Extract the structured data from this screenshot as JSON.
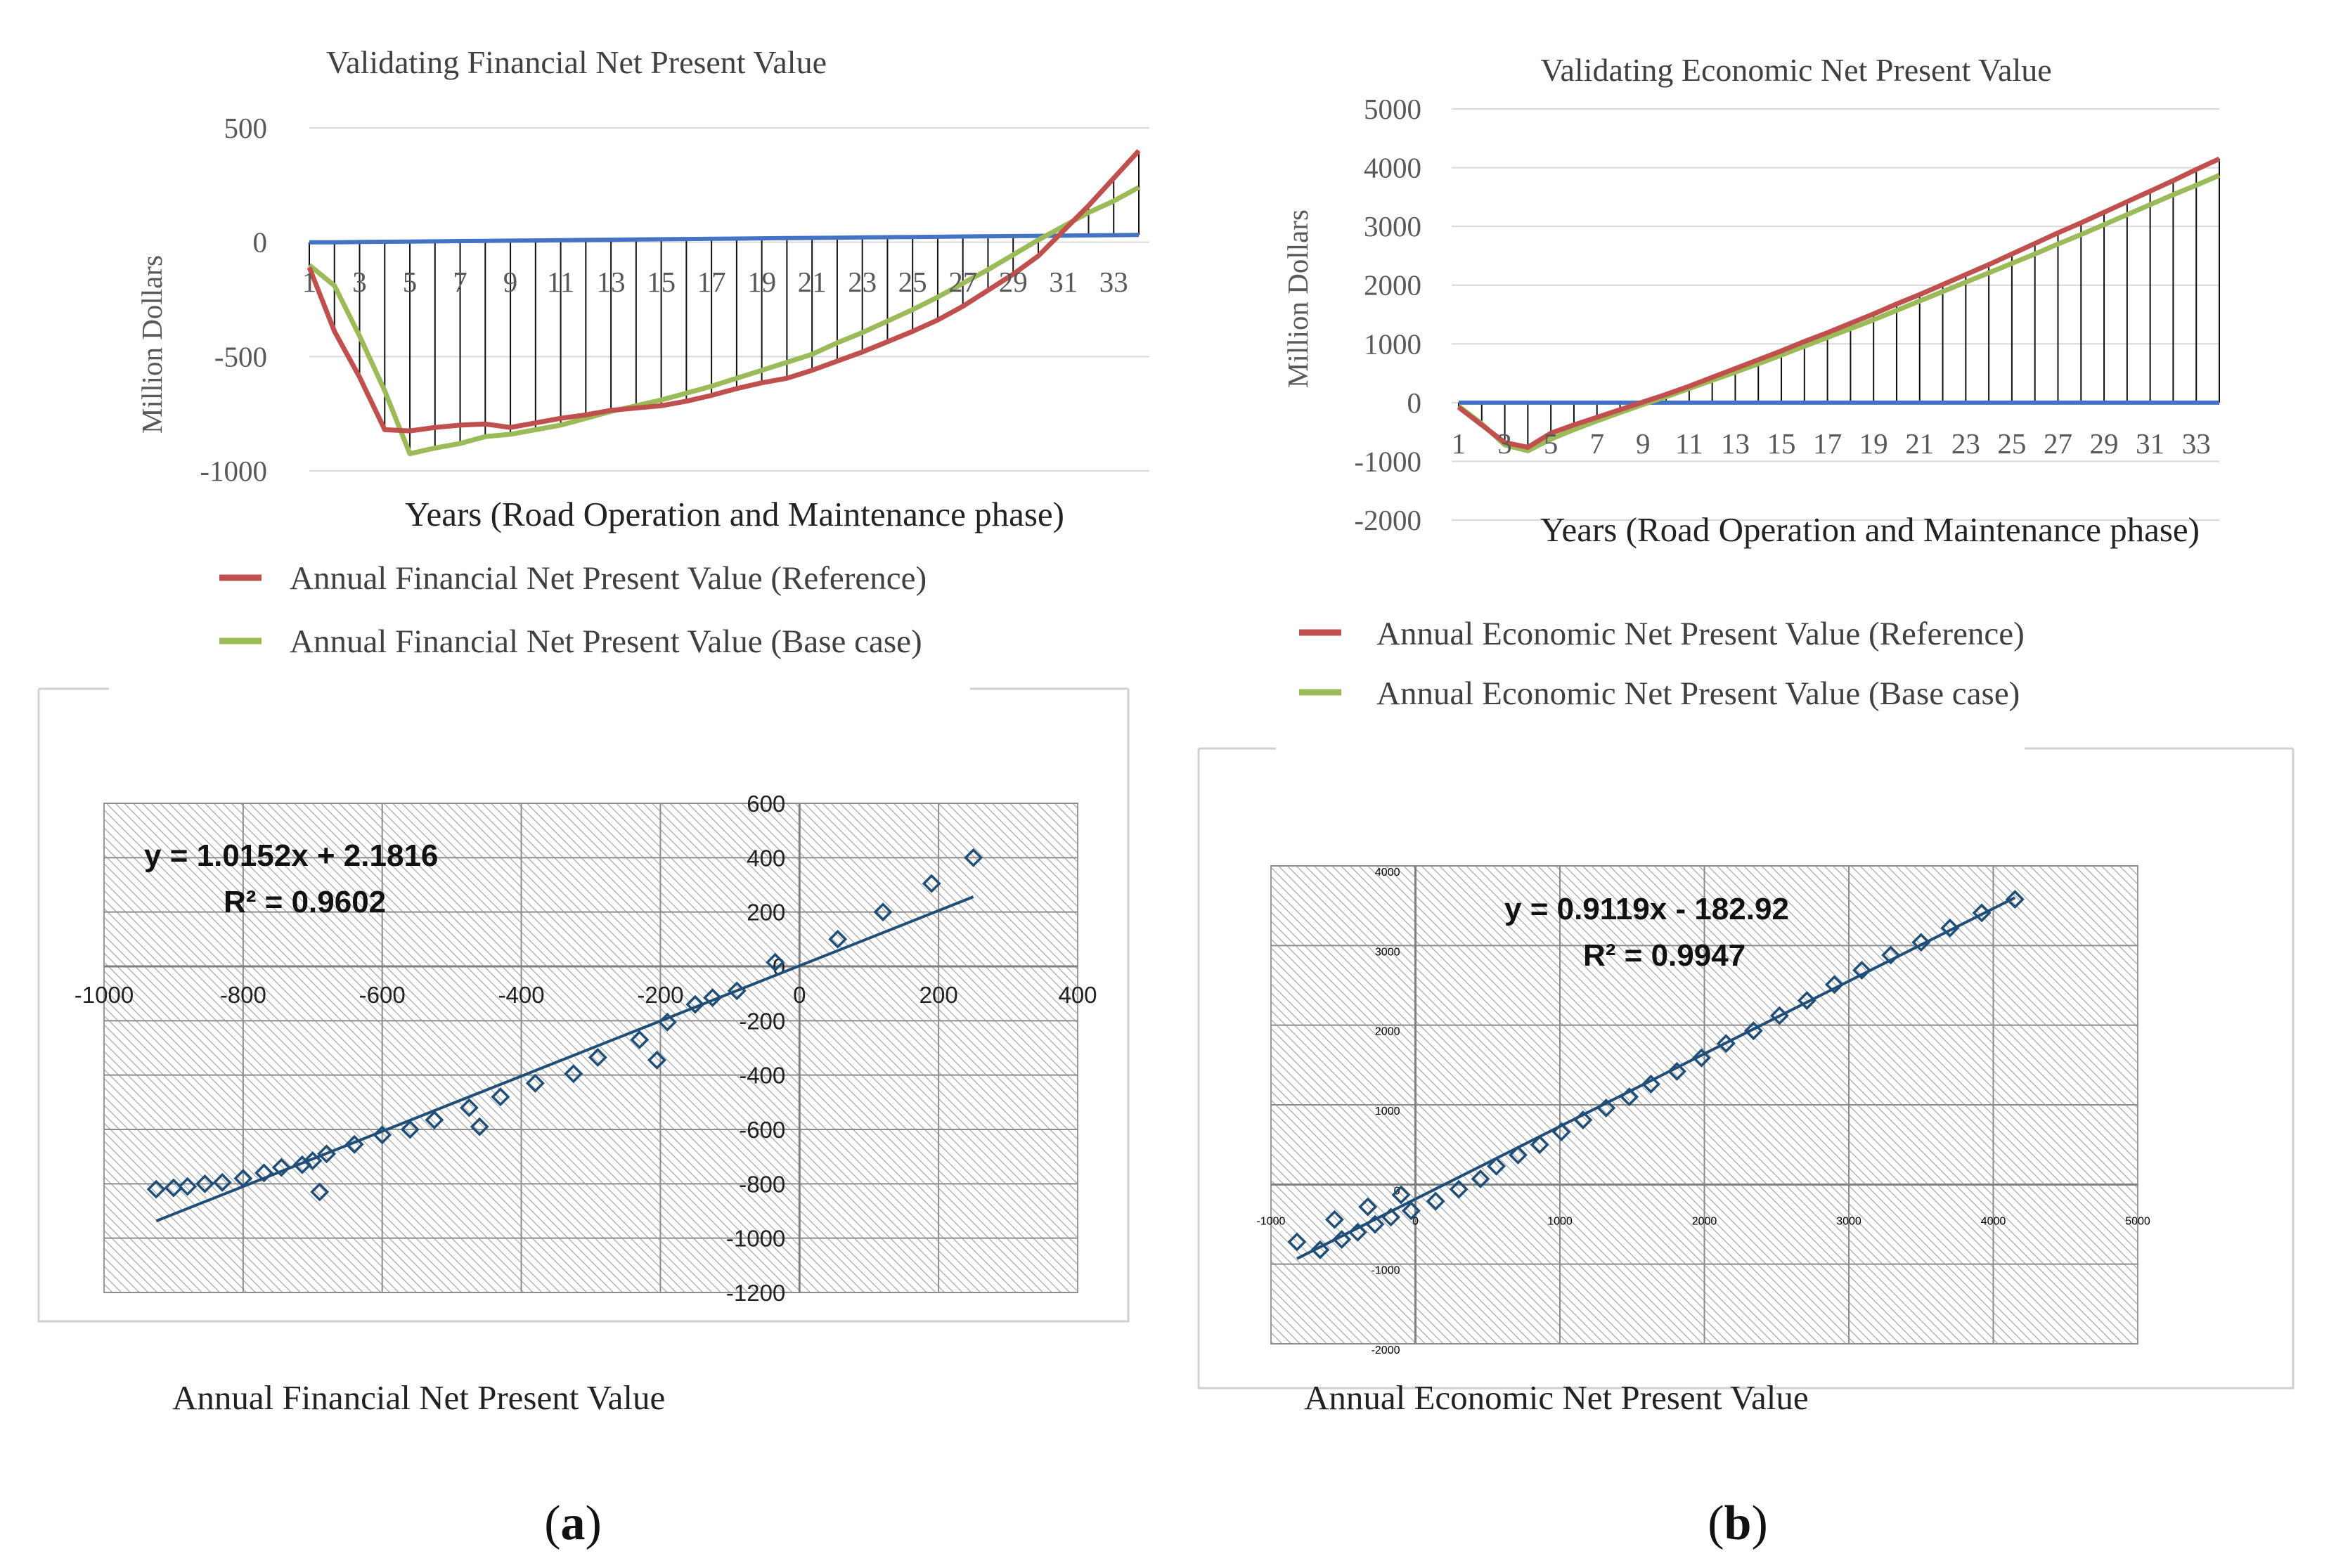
{
  "figure": {
    "label_a": "a",
    "label_b": "b"
  },
  "chart_data": [
    {
      "id": "a-top",
      "type": "line",
      "title": "Validating Financial Net Present Value",
      "xlabel": "Years (Road Operation and Maintenance phase)",
      "ylabel": "Million  Dollars",
      "ylim": [
        -1000,
        500
      ],
      "yticks": [
        500,
        0,
        -500,
        -1000
      ],
      "ytick_labels": [
        "500",
        "0",
        "-500",
        "-1000"
      ],
      "categories": [
        1,
        2,
        3,
        4,
        5,
        6,
        7,
        8,
        9,
        10,
        11,
        12,
        13,
        14,
        15,
        16,
        17,
        18,
        19,
        20,
        21,
        22,
        23,
        24,
        25,
        26,
        27,
        28,
        29,
        30,
        31,
        32,
        33,
        34
      ],
      "xtick_labels": [
        "1",
        "3",
        "5",
        "7",
        "9",
        "11",
        "13",
        "15",
        "17",
        "19",
        "21",
        "23",
        "25",
        "27",
        "29",
        "31",
        "33"
      ],
      "grid": true,
      "drop_lines": true,
      "series": [
        {
          "name": "Annual Financial Net Present Value (Reference)",
          "color": "#c0504d",
          "show_in_legend": true,
          "values": [
            -110,
            -390,
            -590,
            -820,
            -825,
            -810,
            -800,
            -795,
            -810,
            -790,
            -770,
            -755,
            -735,
            -725,
            -715,
            -695,
            -670,
            -640,
            -615,
            -595,
            -560,
            -520,
            -480,
            -435,
            -390,
            -340,
            -280,
            -210,
            -140,
            -60,
            50,
            160,
            280,
            400
          ]
        },
        {
          "name": "Annual Financial Net Present Value (Base case)",
          "color": "#9bbb59",
          "show_in_legend": true,
          "values": [
            -100,
            -190,
            -410,
            -650,
            -925,
            -900,
            -880,
            -850,
            -840,
            -820,
            -800,
            -770,
            -740,
            -715,
            -690,
            -660,
            -630,
            -595,
            -560,
            -525,
            -490,
            -440,
            -395,
            -345,
            -295,
            -240,
            -180,
            -120,
            -55,
            10,
            70,
            130,
            180,
            240
          ]
        },
        {
          "name": "Zero",
          "color": "#4472c4",
          "show_in_legend": false,
          "values": [
            0,
            0,
            1,
            2,
            3,
            4,
            5,
            6,
            7,
            8,
            9,
            10,
            11,
            12,
            13,
            14,
            15,
            16,
            17,
            18,
            19,
            20,
            21,
            22,
            23,
            24,
            25,
            26,
            27,
            28,
            29,
            30,
            31,
            32
          ]
        }
      ],
      "legend_position": "bottom"
    },
    {
      "id": "b-top",
      "type": "line",
      "title": "Validating Economic Net Present Value",
      "xlabel": "Years (Road Operation and Maintenance phase)",
      "ylabel": "Million  Dollars",
      "ylim": [
        -2000,
        5000
      ],
      "yticks": [
        5000,
        4000,
        3000,
        2000,
        1000,
        0,
        -1000,
        -2000
      ],
      "ytick_labels": [
        "5000",
        "4000",
        "3000",
        "2000",
        "1000",
        "0",
        "-1000",
        "-2000"
      ],
      "categories": [
        1,
        2,
        3,
        4,
        5,
        6,
        7,
        8,
        9,
        10,
        11,
        12,
        13,
        14,
        15,
        16,
        17,
        18,
        19,
        20,
        21,
        22,
        23,
        24,
        25,
        26,
        27,
        28,
        29,
        30,
        31,
        32,
        33,
        34
      ],
      "xtick_labels": [
        "1",
        "3",
        "5",
        "7",
        "9",
        "11",
        "13",
        "15",
        "17",
        "19",
        "21",
        "23",
        "25",
        "27",
        "29",
        "31",
        "33"
      ],
      "grid": true,
      "drop_lines": true,
      "series": [
        {
          "name": "Annual Economic Net Present Value (Reference)",
          "color": "#c0504d",
          "show_in_legend": true,
          "values": [
            -80,
            -380,
            -680,
            -760,
            -520,
            -380,
            -250,
            -120,
            10,
            140,
            280,
            430,
            580,
            730,
            880,
            1040,
            1190,
            1350,
            1510,
            1680,
            1840,
            2010,
            2180,
            2350,
            2530,
            2710,
            2890,
            3060,
            3240,
            3420,
            3600,
            3780,
            3970,
            4150
          ]
        },
        {
          "name": "Annual Economic Net Present Value (Base case)",
          "color": "#9bbb59",
          "show_in_legend": true,
          "values": [
            -60,
            -360,
            -720,
            -820,
            -620,
            -460,
            -310,
            -170,
            -30,
            100,
            240,
            380,
            520,
            660,
            810,
            960,
            1110,
            1260,
            1410,
            1570,
            1730,
            1890,
            2050,
            2210,
            2370,
            2530,
            2700,
            2860,
            3030,
            3200,
            3370,
            3540,
            3700,
            3870
          ]
        },
        {
          "name": "Zero",
          "color": "#4472c4",
          "show_in_legend": false,
          "values": [
            0,
            0,
            0,
            0,
            0,
            0,
            0,
            0,
            0,
            0,
            0,
            0,
            0,
            0,
            0,
            0,
            0,
            0,
            0,
            0,
            0,
            0,
            0,
            0,
            0,
            0,
            0,
            0,
            0,
            0,
            0,
            0,
            0,
            0
          ]
        }
      ],
      "legend_position": "bottom"
    },
    {
      "id": "a-bottom",
      "type": "scatter",
      "xlabel": "Annual Financial Net Present Value",
      "xlim": [
        -1000,
        400
      ],
      "ylim": [
        -1200,
        600
      ],
      "xticks": [
        -1000,
        -800,
        -600,
        -400,
        -200,
        0,
        200,
        400
      ],
      "xtick_labels": [
        "-1000",
        "-800",
        "-600",
        "-400",
        "-200",
        "0",
        "200",
        "400"
      ],
      "yticks": [
        600,
        400,
        200,
        0,
        -200,
        -400,
        -600,
        -800,
        -1000,
        -1200
      ],
      "ytick_labels": [
        "600",
        "400",
        "200",
        "0",
        "-200",
        "-400",
        "-600",
        "-800",
        "-1000",
        "-1200"
      ],
      "equation": "y = 1.0152x + 2.1816",
      "r_squared": "R² = 0.9602",
      "trend": {
        "slope": 1.0152,
        "intercept": 2.1816,
        "x_range": [
          -925,
          250
        ]
      },
      "marker_color": "#1f4e79",
      "points": [
        [
          -925,
          -820
        ],
        [
          -900,
          -815
        ],
        [
          -880,
          -810
        ],
        [
          -855,
          -800
        ],
        [
          -830,
          -795
        ],
        [
          -800,
          -780
        ],
        [
          -770,
          -760
        ],
        [
          -745,
          -740
        ],
        [
          -715,
          -730
        ],
        [
          -700,
          -715
        ],
        [
          -690,
          -830
        ],
        [
          -680,
          -690
        ],
        [
          -640,
          -655
        ],
        [
          -600,
          -620
        ],
        [
          -560,
          -600
        ],
        [
          -525,
          -565
        ],
        [
          -475,
          -520
        ],
        [
          -460,
          -590
        ],
        [
          -430,
          -480
        ],
        [
          -380,
          -430
        ],
        [
          -325,
          -395
        ],
        [
          -290,
          -335
        ],
        [
          -230,
          -270
        ],
        [
          -205,
          -345
        ],
        [
          -190,
          -205
        ],
        [
          -150,
          -140
        ],
        [
          -125,
          -115
        ],
        [
          -90,
          -90
        ],
        [
          -35,
          15
        ],
        [
          55,
          100
        ],
        [
          120,
          200
        ],
        [
          190,
          305
        ],
        [
          250,
          400
        ]
      ]
    },
    {
      "id": "b-bottom",
      "type": "scatter",
      "xlabel": "Annual Economic Net Present Value",
      "xlim": [
        -1000,
        5000
      ],
      "ylim": [
        -2000,
        4000
      ],
      "xticks": [
        -1000,
        0,
        1000,
        2000,
        3000,
        4000,
        5000
      ],
      "xtick_labels": [
        "-1000",
        "0",
        "1000",
        "2000",
        "3000",
        "4000",
        "5000"
      ],
      "yticks": [
        4000,
        3000,
        2000,
        1000,
        0,
        -1000,
        -2000
      ],
      "ytick_labels": [
        "4000",
        "3000",
        "2000",
        "1000",
        "0",
        "-1000",
        "-2000"
      ],
      "equation": "y = 0.9119x - 182.92",
      "r_squared": "R² = 0.9947",
      "trend": {
        "slope": 0.9119,
        "intercept": -182.92,
        "x_range": [
          -820,
          4150
        ]
      },
      "marker_color": "#1f4e79",
      "points": [
        [
          -820,
          -720
        ],
        [
          -660,
          -820
        ],
        [
          -560,
          -440
        ],
        [
          -510,
          -690
        ],
        [
          -400,
          -600
        ],
        [
          -330,
          -280
        ],
        [
          -280,
          -500
        ],
        [
          -170,
          -410
        ],
        [
          -100,
          -130
        ],
        [
          -30,
          -330
        ],
        [
          140,
          -210
        ],
        [
          300,
          -60
        ],
        [
          450,
          70
        ],
        [
          560,
          230
        ],
        [
          710,
          370
        ],
        [
          860,
          500
        ],
        [
          1010,
          660
        ],
        [
          1160,
          810
        ],
        [
          1320,
          960
        ],
        [
          1480,
          1100
        ],
        [
          1630,
          1260
        ],
        [
          1810,
          1420
        ],
        [
          1980,
          1590
        ],
        [
          2150,
          1770
        ],
        [
          2340,
          1930
        ],
        [
          2520,
          2120
        ],
        [
          2710,
          2310
        ],
        [
          2900,
          2510
        ],
        [
          3090,
          2690
        ],
        [
          3290,
          2880
        ],
        [
          3500,
          3040
        ],
        [
          3700,
          3220
        ],
        [
          3920,
          3410
        ],
        [
          4150,
          3580
        ]
      ]
    }
  ]
}
